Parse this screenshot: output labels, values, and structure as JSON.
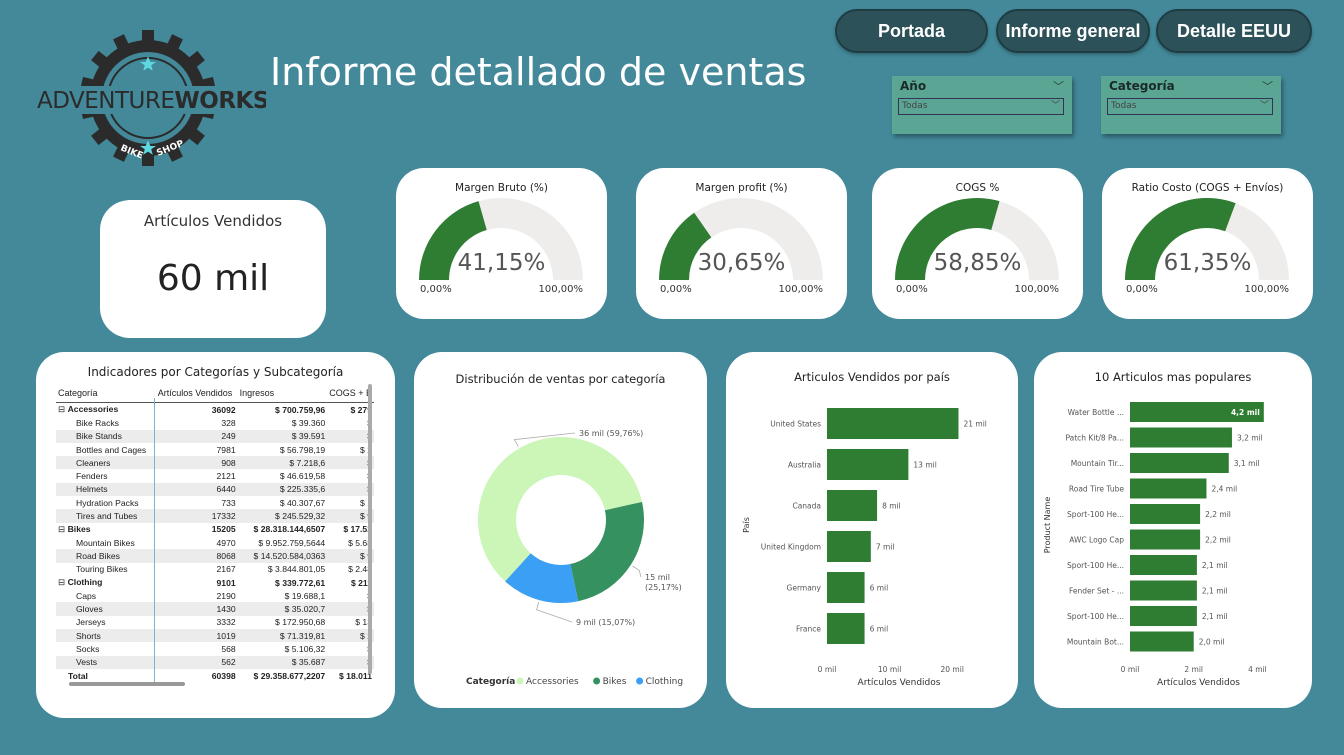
{
  "nav": {
    "portada": "Portada",
    "informe_general": "Informe general",
    "detalle_eeuu": "Detalle EEUU"
  },
  "logo": {
    "text_adventure": "ADVENTURE",
    "text_works": "WORKS",
    "text_bike": "BIKE",
    "text_shop": "SHOP"
  },
  "page_title": "Informe detallado de ventas",
  "slicers": [
    {
      "label": "Año",
      "value": "Todas"
    },
    {
      "label": "Categoría",
      "value": "Todas"
    }
  ],
  "kpi": {
    "title": "Artículos Vendidos",
    "value": "60 mil"
  },
  "gauges": [
    {
      "title": "Margen Bruto (%)",
      "value_label": "41,15%",
      "fraction": 0.4115,
      "min": "0,00%",
      "max": "100,00%"
    },
    {
      "title": "Margen profit (%)",
      "value_label": "30,65%",
      "fraction": 0.3065,
      "min": "0,00%",
      "max": "100,00%"
    },
    {
      "title": "COGS %",
      "value_label": "58,85%",
      "fraction": 0.5885,
      "min": "0,00%",
      "max": "100,00%"
    },
    {
      "title": "Ratio Costo (COGS + Envíos)",
      "value_label": "61,35%",
      "fraction": 0.6135,
      "min": "0,00%",
      "max": "100,00%"
    }
  ],
  "colors": {
    "gauge_fill": "#2e7d32",
    "gauge_track": "#eeedeb",
    "bar": "#2e7d32",
    "accessories": "#ccf5b8",
    "bikes": "#35915f",
    "clothing": "#3ba0f5"
  },
  "matrix": {
    "title": "Indicadores por Categorías y Subcategoría",
    "headers": [
      "Categoría",
      "Artículos Vendidos",
      "Ingresos",
      "COGS + E"
    ],
    "rows": [
      {
        "type": "cat",
        "name": "Accessories",
        "qty": "36092",
        "rev": "$ 700.759,96",
        "cogs": "$ 279"
      },
      {
        "type": "sub",
        "name": "Bike Racks",
        "qty": "328",
        "rev": "$ 39.360",
        "cogs": "$"
      },
      {
        "type": "sub",
        "name": "Bike Stands",
        "qty": "249",
        "rev": "$ 39.591",
        "cogs": "$"
      },
      {
        "type": "sub",
        "name": "Bottles and Cages",
        "qty": "7981",
        "rev": "$ 56.798,19",
        "cogs": "$ 2"
      },
      {
        "type": "sub",
        "name": "Cleaners",
        "qty": "908",
        "rev": "$ 7.218,6",
        "cogs": "$"
      },
      {
        "type": "sub",
        "name": "Fenders",
        "qty": "2121",
        "rev": "$ 46.619,58",
        "cogs": "$"
      },
      {
        "type": "sub",
        "name": "Helmets",
        "qty": "6440",
        "rev": "$ 225.335,6",
        "cogs": "$"
      },
      {
        "type": "sub",
        "name": "Hydration Packs",
        "qty": "733",
        "rev": "$ 40.307,67",
        "cogs": "$ 1"
      },
      {
        "type": "sub",
        "name": "Tires and Tubes",
        "qty": "17332",
        "rev": "$ 245.529,32",
        "cogs": "$ 9"
      },
      {
        "type": "cat",
        "name": "Bikes",
        "qty": "15205",
        "rev": "$ 28.318.144,6507",
        "cogs": "$ 17.52"
      },
      {
        "type": "sub",
        "name": "Mountain Bikes",
        "qty": "4970",
        "rev": "$ 9.952.759,5644",
        "cogs": "$ 5.68"
      },
      {
        "type": "sub",
        "name": "Road Bikes",
        "qty": "8068",
        "rev": "$ 14.520.584,0363",
        "cogs": "$ 9"
      },
      {
        "type": "sub",
        "name": "Touring Bikes",
        "qty": "2167",
        "rev": "$ 3.844.801,05",
        "cogs": "$ 2.48"
      },
      {
        "type": "cat",
        "name": "Clothing",
        "qty": "9101",
        "rev": "$ 339.772,61",
        "cogs": "$ 211"
      },
      {
        "type": "sub",
        "name": "Caps",
        "qty": "2190",
        "rev": "$ 19.688,1",
        "cogs": "$"
      },
      {
        "type": "sub",
        "name": "Gloves",
        "qty": "1430",
        "rev": "$ 35.020,7",
        "cogs": "$"
      },
      {
        "type": "sub",
        "name": "Jerseys",
        "qty": "3332",
        "rev": "$ 172.950,68",
        "cogs": "$ 13"
      },
      {
        "type": "sub",
        "name": "Shorts",
        "qty": "1019",
        "rev": "$ 71.319,81",
        "cogs": "$ 2"
      },
      {
        "type": "sub",
        "name": "Socks",
        "qty": "568",
        "rev": "$ 5.106,32",
        "cogs": "$"
      },
      {
        "type": "sub",
        "name": "Vests",
        "qty": "562",
        "rev": "$ 35.687",
        "cogs": "$"
      },
      {
        "type": "total",
        "name": "Total",
        "qty": "60398",
        "rev": "$ 29.358.677,2207",
        "cogs": "$ 18.011"
      }
    ]
  },
  "chart_data": [
    {
      "type": "pie",
      "title": "Distribución de ventas por categoría",
      "legend_title": "Categoría",
      "legend_position": "bottom",
      "categories": [
        "Accessories",
        "Bikes",
        "Clothing"
      ],
      "values": [
        59.76,
        25.17,
        15.07
      ],
      "labels": [
        "36 mil (59,76%)",
        "15 mil (25,17%)",
        "9 mil (15,07%)"
      ]
    },
    {
      "type": "bar",
      "orientation": "horizontal",
      "title": "Articulos Vendidos por país",
      "xlabel": "Artículos Vendidos",
      "ylabel": "País",
      "categories": [
        "United States",
        "Australia",
        "Canada",
        "United Kingdom",
        "Germany",
        "France"
      ],
      "values": [
        21,
        13,
        8,
        7,
        6,
        6
      ],
      "value_labels": [
        "21 mil",
        "13 mil",
        "8 mil",
        "7 mil",
        "6 mil",
        "6 mil"
      ],
      "xticks": [
        "0 mil",
        "10 mil",
        "20 mil"
      ],
      "xlim": [
        0,
        23
      ]
    },
    {
      "type": "bar",
      "orientation": "horizontal",
      "title": "10 Articulos mas populares",
      "xlabel": "Artículos Vendidos",
      "ylabel": "Product Name",
      "categories": [
        "Water Bottle ...",
        "Patch Kit/8 Pa...",
        "Mountain Tir...",
        "Road Tire Tube",
        "Sport-100 He...",
        "AWC Logo Cap",
        "Sport-100 He...",
        "Fender Set - ...",
        "Sport-100 He...",
        "Mountain Bot..."
      ],
      "values": [
        4.2,
        3.2,
        3.1,
        2.4,
        2.2,
        2.2,
        2.1,
        2.1,
        2.1,
        2.0
      ],
      "value_labels": [
        "4,2 mil",
        "3,2 mil",
        "3,1 mil",
        "2,4 mil",
        "2,2 mil",
        "2,2 mil",
        "2,1 mil",
        "2,1 mil",
        "2,1 mil",
        "2,0 mil"
      ],
      "xticks": [
        "0 mil",
        "2 mil",
        "4 mil"
      ],
      "xlim": [
        0,
        4.3
      ]
    }
  ]
}
